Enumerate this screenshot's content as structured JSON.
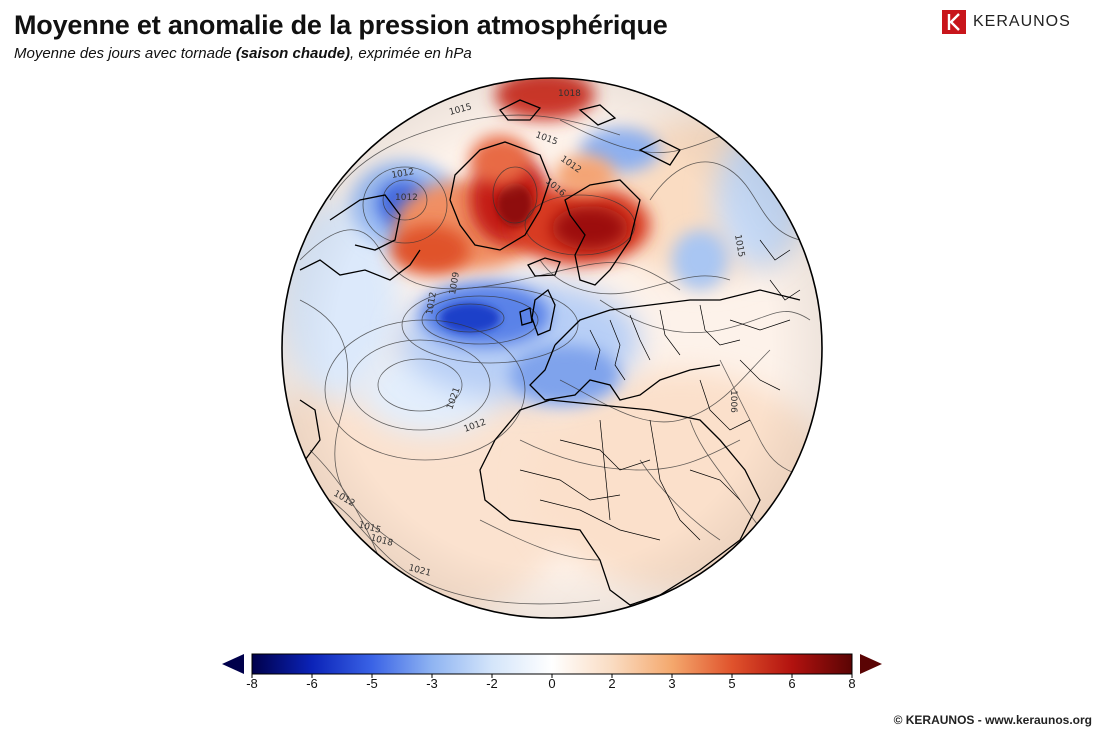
{
  "title": "Moyenne et anomalie de la pression atmosphérique",
  "subtitle_main": "Moyenne des jours avec tornade ",
  "subtitle_paren": "(saison chaude)",
  "subtitle_tail": ", exprimée en hPa",
  "logo": {
    "name": "KERAUNOS",
    "mark_icon": "keraunos-k-logo-icon"
  },
  "copyright": "© KERAUNOS - www.keraunos.org",
  "colorbar": {
    "ticks": [
      "-8",
      "-6",
      "-5",
      "-3",
      "-2",
      "0",
      "2",
      "3",
      "5",
      "6",
      "8"
    ],
    "colors": [
      "#00004b",
      "#0b23b8",
      "#3a63e6",
      "#8fb4f2",
      "#d4e5fa",
      "#ffffff",
      "#fadcc2",
      "#f4a86d",
      "#e0532c",
      "#b2120f",
      "#5a0404"
    ],
    "unit": "hPa"
  },
  "map": {
    "projection": "orthographic",
    "centre": "Atlantique Nord / Europe",
    "isobar_labels": [
      "1009",
      "1012",
      "1015",
      "1016",
      "1012",
      "1012",
      "1015",
      "1015",
      "1012",
      "1021",
      "1012",
      "1012",
      "1015",
      "1018",
      "1021",
      "1006",
      "1018"
    ],
    "anomaly_colors": {
      "positive": "#c41a12",
      "negative": "#2a52d8"
    }
  }
}
